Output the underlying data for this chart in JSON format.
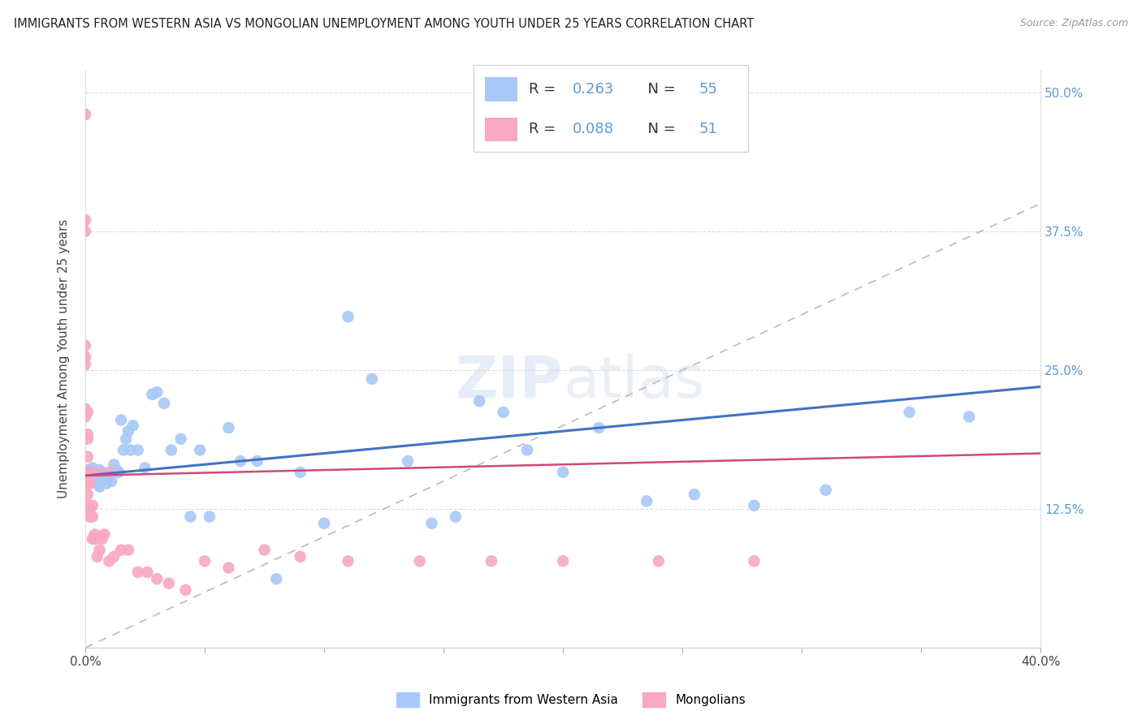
{
  "title": "IMMIGRANTS FROM WESTERN ASIA VS MONGOLIAN UNEMPLOYMENT AMONG YOUTH UNDER 25 YEARS CORRELATION CHART",
  "source": "Source: ZipAtlas.com",
  "ylabel": "Unemployment Among Youth under 25 years",
  "xlim": [
    0.0,
    0.4
  ],
  "ylim": [
    0.0,
    0.52
  ],
  "watermark": "ZIPatlas",
  "blue_R": "0.263",
  "blue_N": "55",
  "pink_R": "0.088",
  "pink_N": "51",
  "blue_color": "#a8c8f8",
  "pink_color": "#f8a8c0",
  "blue_line_color": "#4472c4",
  "pink_line_color": "#d04878",
  "dashed_line_color": "#bbbbbb",
  "legend_label_blue": "Immigrants from Western Asia",
  "legend_label_pink": "Mongolians",
  "blue_x": [
    0.001,
    0.002,
    0.003,
    0.004,
    0.004,
    0.005,
    0.005,
    0.006,
    0.006,
    0.007,
    0.008,
    0.009,
    0.01,
    0.011,
    0.012,
    0.013,
    0.014,
    0.015,
    0.016,
    0.017,
    0.018,
    0.019,
    0.02,
    0.022,
    0.025,
    0.028,
    0.03,
    0.033,
    0.036,
    0.04,
    0.044,
    0.048,
    0.052,
    0.06,
    0.065,
    0.072,
    0.08,
    0.09,
    0.1,
    0.11,
    0.12,
    0.135,
    0.145,
    0.155,
    0.165,
    0.175,
    0.185,
    0.2,
    0.215,
    0.235,
    0.255,
    0.28,
    0.31,
    0.345,
    0.37
  ],
  "blue_y": [
    0.16,
    0.158,
    0.162,
    0.155,
    0.15,
    0.148,
    0.155,
    0.145,
    0.16,
    0.158,
    0.155,
    0.148,
    0.155,
    0.15,
    0.165,
    0.16,
    0.158,
    0.205,
    0.178,
    0.188,
    0.195,
    0.178,
    0.2,
    0.178,
    0.162,
    0.228,
    0.23,
    0.22,
    0.178,
    0.188,
    0.118,
    0.178,
    0.118,
    0.198,
    0.168,
    0.168,
    0.062,
    0.158,
    0.112,
    0.298,
    0.242,
    0.168,
    0.112,
    0.118,
    0.222,
    0.212,
    0.178,
    0.158,
    0.198,
    0.132,
    0.138,
    0.128,
    0.142,
    0.212,
    0.208
  ],
  "pink_x": [
    0.0,
    0.0,
    0.0,
    0.0,
    0.0,
    0.0,
    0.0,
    0.0,
    0.001,
    0.001,
    0.001,
    0.001,
    0.001,
    0.001,
    0.001,
    0.001,
    0.002,
    0.002,
    0.002,
    0.002,
    0.002,
    0.003,
    0.003,
    0.003,
    0.004,
    0.004,
    0.005,
    0.005,
    0.006,
    0.007,
    0.008,
    0.01,
    0.012,
    0.015,
    0.018,
    0.022,
    0.026,
    0.03,
    0.035,
    0.042,
    0.05,
    0.06,
    0.075,
    0.09,
    0.11,
    0.14,
    0.17,
    0.2,
    0.24,
    0.28,
    0.01
  ],
  "pink_y": [
    0.48,
    0.385,
    0.375,
    0.272,
    0.262,
    0.255,
    0.215,
    0.208,
    0.212,
    0.192,
    0.188,
    0.172,
    0.158,
    0.148,
    0.138,
    0.128,
    0.125,
    0.118,
    0.158,
    0.148,
    0.158,
    0.128,
    0.118,
    0.098,
    0.098,
    0.102,
    0.158,
    0.082,
    0.088,
    0.098,
    0.102,
    0.158,
    0.082,
    0.088,
    0.088,
    0.068,
    0.068,
    0.062,
    0.058,
    0.052,
    0.078,
    0.072,
    0.088,
    0.082,
    0.078,
    0.078,
    0.078,
    0.078,
    0.078,
    0.078,
    0.078
  ]
}
